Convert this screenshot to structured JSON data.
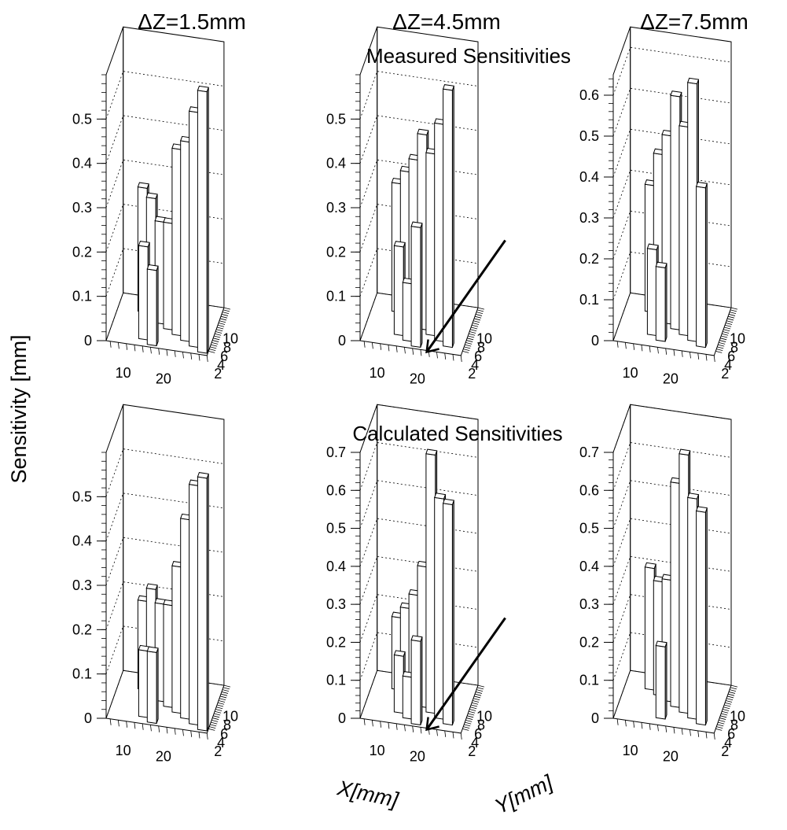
{
  "column_titles": [
    "ΔZ=1.5mm",
    "ΔZ=4.5mm",
    "ΔZ=7.5mm"
  ],
  "row_titles": [
    "Measured Sensitivities",
    "Calculated Sensitivities"
  ],
  "y_axis_label": "Sensitivity [mm]",
  "x_axis_label": "X[mm]",
  "depth_axis_label": "Y[mm]",
  "x_tick_labels": [
    "10",
    "20"
  ],
  "depth_tick_labels": [
    "2",
    "4",
    "6",
    "8",
    "10"
  ],
  "colors": {
    "front_face": "#ffffff",
    "side_face": "#999999",
    "top_face": "#ffffff",
    "line": "#000000"
  },
  "chart_data": [
    {
      "type": "bar",
      "title": "ΔZ=1.5mm",
      "row": "Measured Sensitivities",
      "ylim": [
        0,
        0.6
      ],
      "z_ticks": [
        "0",
        "0.1",
        "0.2",
        "0.3",
        "0.4",
        "0.5"
      ],
      "bars": [
        {
          "x": 10,
          "y": 8,
          "value": 0.28
        },
        {
          "x": 12.5,
          "y": 7,
          "value": 0.27
        },
        {
          "x": 15,
          "y": 6,
          "value": 0.23
        },
        {
          "x": 17.5,
          "y": 5,
          "value": 0.24
        },
        {
          "x": 20,
          "y": 4,
          "value": 0.42
        },
        {
          "x": 22.5,
          "y": 3,
          "value": 0.45
        },
        {
          "x": 25,
          "y": 2,
          "value": 0.53
        },
        {
          "x": 27.5,
          "y": 1,
          "value": 0.59
        },
        {
          "x": 12.5,
          "y": 2,
          "value": 0.21
        },
        {
          "x": 15,
          "y": 1,
          "value": 0.17
        }
      ],
      "arrow": false
    },
    {
      "type": "bar",
      "title": "ΔZ=4.5mm",
      "row": "Measured Sensitivities",
      "ylim": [
        0,
        0.6
      ],
      "z_ticks": [
        "0",
        "0.1",
        "0.2",
        "0.3",
        "0.4",
        "0.5"
      ],
      "bars": [
        {
          "x": 10,
          "y": 8,
          "value": 0.29
        },
        {
          "x": 12.5,
          "y": 7,
          "value": 0.33
        },
        {
          "x": 15,
          "y": 6,
          "value": 0.37
        },
        {
          "x": 17.5,
          "y": 5,
          "value": 0.44
        },
        {
          "x": 20,
          "y": 4,
          "value": 0.41
        },
        {
          "x": 22.5,
          "y": 3,
          "value": 0.49
        },
        {
          "x": 25,
          "y": 2,
          "value": 0.58
        },
        {
          "x": 12.5,
          "y": 3,
          "value": 0.2
        },
        {
          "x": 15,
          "y": 2,
          "value": 0.13
        },
        {
          "x": 17.5,
          "y": 1,
          "value": 0.27
        }
      ],
      "arrow": true
    },
    {
      "type": "bar",
      "title": "ΔZ=7.5mm",
      "row": "Measured Sensitivities",
      "ylim": [
        0,
        0.65
      ],
      "z_ticks": [
        "0",
        "0.1",
        "0.2",
        "0.3",
        "0.4",
        "0.5",
        "0.6"
      ],
      "bars": [
        {
          "x": 10,
          "y": 8,
          "value": 0.31
        },
        {
          "x": 12.5,
          "y": 7,
          "value": 0.4
        },
        {
          "x": 15,
          "y": 6,
          "value": 0.46
        },
        {
          "x": 17.5,
          "y": 5,
          "value": 0.57
        },
        {
          "x": 20,
          "y": 4,
          "value": 0.51
        },
        {
          "x": 22.5,
          "y": 3,
          "value": 0.63
        },
        {
          "x": 25,
          "y": 2,
          "value": 0.39
        },
        {
          "x": 12.5,
          "y": 3,
          "value": 0.21
        },
        {
          "x": 15,
          "y": 2,
          "value": 0.18
        }
      ],
      "arrow": false
    },
    {
      "type": "bar",
      "title": "ΔZ=1.5mm",
      "row": "Calculated Sensitivities",
      "ylim": [
        0,
        0.6
      ],
      "z_ticks": [
        "0",
        "0.1",
        "0.2",
        "0.3",
        "0.4",
        "0.5"
      ],
      "bars": [
        {
          "x": 10,
          "y": 8,
          "value": 0.2
        },
        {
          "x": 12.5,
          "y": 7,
          "value": 0.24
        },
        {
          "x": 15,
          "y": 6,
          "value": 0.22
        },
        {
          "x": 17.5,
          "y": 5,
          "value": 0.23
        },
        {
          "x": 20,
          "y": 4,
          "value": 0.33
        },
        {
          "x": 22.5,
          "y": 3,
          "value": 0.45
        },
        {
          "x": 25,
          "y": 2,
          "value": 0.54
        },
        {
          "x": 27.5,
          "y": 1,
          "value": 0.57
        },
        {
          "x": 12.5,
          "y": 2,
          "value": 0.15
        },
        {
          "x": 15,
          "y": 1,
          "value": 0.16
        }
      ],
      "arrow": false
    },
    {
      "type": "bar",
      "title": "ΔZ=4.5mm",
      "row": "Calculated Sensitivities",
      "ylim": [
        0,
        0.7
      ],
      "z_ticks": [
        "0",
        "0.1",
        "0.2",
        "0.3",
        "0.4",
        "0.5",
        "0.6",
        "0.7"
      ],
      "bars": [
        {
          "x": 10,
          "y": 8,
          "value": 0.19
        },
        {
          "x": 12.5,
          "y": 7,
          "value": 0.23
        },
        {
          "x": 15,
          "y": 6,
          "value": 0.28
        },
        {
          "x": 17.5,
          "y": 5,
          "value": 0.37
        },
        {
          "x": 20,
          "y": 4,
          "value": 0.68
        },
        {
          "x": 22.5,
          "y": 3,
          "value": 0.58
        },
        {
          "x": 25,
          "y": 2,
          "value": 0.58
        },
        {
          "x": 12.5,
          "y": 3,
          "value": 0.15
        },
        {
          "x": 15,
          "y": 2,
          "value": 0.11
        },
        {
          "x": 17.5,
          "y": 1,
          "value": 0.22
        }
      ],
      "arrow": true
    },
    {
      "type": "bar",
      "title": "ΔZ=7.5mm",
      "row": "Calculated Sensitivities",
      "ylim": [
        0,
        0.7
      ],
      "z_ticks": [
        "0",
        "0.1",
        "0.2",
        "0.3",
        "0.4",
        "0.5",
        "0.6",
        "0.7"
      ],
      "bars": [
        {
          "x": 10,
          "y": 8,
          "value": 0.32
        },
        {
          "x": 12.5,
          "y": 7,
          "value": 0.3
        },
        {
          "x": 15,
          "y": 6,
          "value": 0.32
        },
        {
          "x": 17.5,
          "y": 5,
          "value": 0.59
        },
        {
          "x": 20,
          "y": 4,
          "value": 0.68
        },
        {
          "x": 22.5,
          "y": 3,
          "value": 0.58
        },
        {
          "x": 25,
          "y": 2,
          "value": 0.56
        },
        {
          "x": 15,
          "y": 2,
          "value": 0.19
        }
      ],
      "arrow": false
    }
  ]
}
